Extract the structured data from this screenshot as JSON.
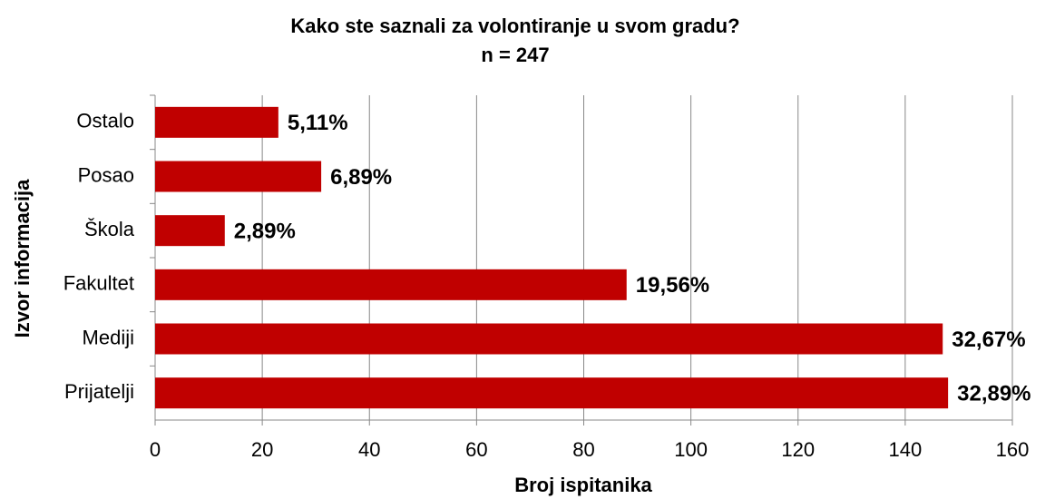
{
  "chart_data": {
    "type": "hbar",
    "title": "Kako ste saznali za volontiranje u svom gradu?",
    "subtitle": "n = 247",
    "x_label": "Broj ispitanika",
    "y_label": "Izvor informacija",
    "categories": [
      "Ostalo",
      "Posao",
      "Škola",
      "Fakultet",
      "Mediji",
      "Prijatelji"
    ],
    "values": [
      23,
      31,
      13,
      88,
      147,
      148
    ],
    "value_labels": [
      "5,11%",
      "6,89%",
      "2,89%",
      "19,56%",
      "32,67%",
      "32,89%"
    ],
    "color": "#c00000",
    "xlim": [
      0,
      160
    ],
    "xticks": [
      0,
      20,
      40,
      60,
      80,
      100,
      120,
      140,
      160
    ],
    "grid": true
  }
}
